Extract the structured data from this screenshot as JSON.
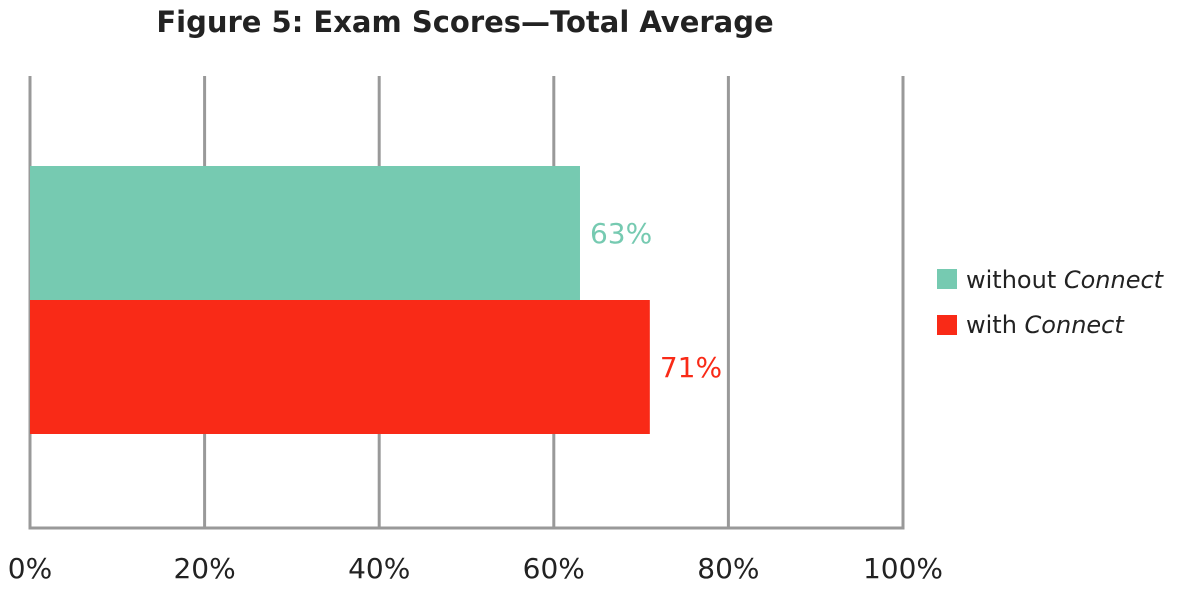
{
  "chart_data": {
    "type": "bar",
    "orientation": "horizontal",
    "title": "Figure 5: Exam Scores—Total Average",
    "xlabel": "",
    "ylabel": "",
    "xlim": [
      0,
      100
    ],
    "x_ticks": [
      0,
      20,
      40,
      60,
      80,
      100
    ],
    "x_tick_labels": [
      "0%",
      "20%",
      "40%",
      "60%",
      "80%",
      "100%"
    ],
    "grid": "vertical",
    "legend_position": "right",
    "series": [
      {
        "name_plain": "without ",
        "name_italic": "Connect",
        "value": 63,
        "data_label": "63%",
        "color": "#76cab1"
      },
      {
        "name_plain": "with ",
        "name_italic": "Connect",
        "value": 71,
        "data_label": "71%",
        "color": "#f92a17"
      }
    ],
    "colors": {
      "grid": "#999999",
      "text": "#222222"
    }
  }
}
